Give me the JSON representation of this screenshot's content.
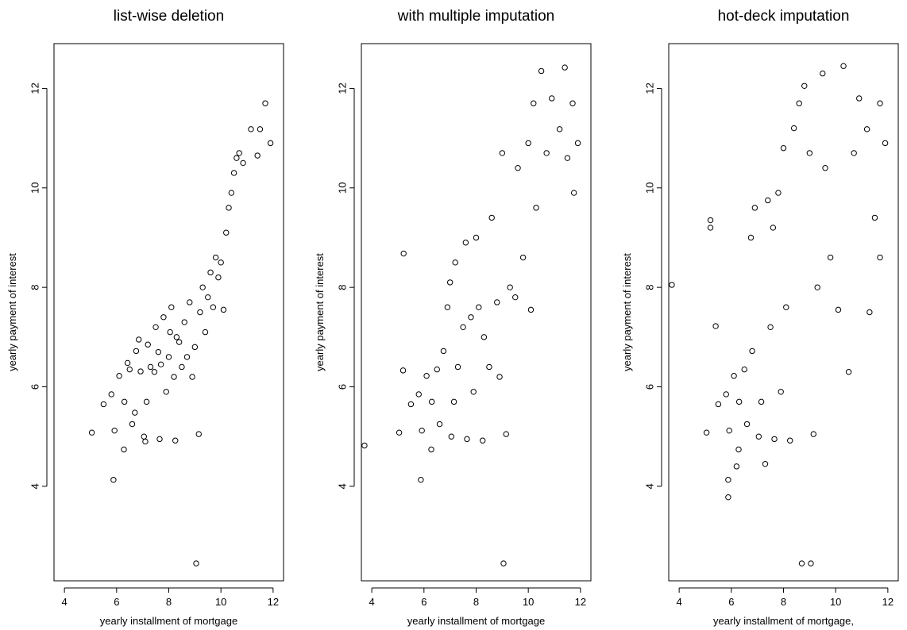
{
  "chart_data": [
    {
      "type": "scatter",
      "title": "list-wise deletion",
      "xlabel": "yearly installment of mortgage",
      "ylabel": "yearly payment of interest",
      "xlim": [
        3.6,
        12.4
      ],
      "ylim": [
        2.1,
        12.9
      ],
      "xticks": [
        4,
        6,
        8,
        10,
        12
      ],
      "yticks": [
        4,
        6,
        8,
        10,
        12
      ],
      "marker": "open-circle",
      "points": [
        [
          5.05,
          5.08
        ],
        [
          5.5,
          5.65
        ],
        [
          5.8,
          5.85
        ],
        [
          5.88,
          4.13
        ],
        [
          5.92,
          5.12
        ],
        [
          6.1,
          6.22
        ],
        [
          6.28,
          4.74
        ],
        [
          6.3,
          5.7
        ],
        [
          6.42,
          6.48
        ],
        [
          6.5,
          6.35
        ],
        [
          6.6,
          5.25
        ],
        [
          6.7,
          5.48
        ],
        [
          6.75,
          6.72
        ],
        [
          6.85,
          6.95
        ],
        [
          6.92,
          6.31
        ],
        [
          7.05,
          5.0
        ],
        [
          7.1,
          4.9
        ],
        [
          7.15,
          5.7
        ],
        [
          7.2,
          6.85
        ],
        [
          7.3,
          6.4
        ],
        [
          7.45,
          6.3
        ],
        [
          7.5,
          7.2
        ],
        [
          7.6,
          6.7
        ],
        [
          7.65,
          4.95
        ],
        [
          7.7,
          6.45
        ],
        [
          7.8,
          7.4
        ],
        [
          7.9,
          5.9
        ],
        [
          8.0,
          6.6
        ],
        [
          8.05,
          7.1
        ],
        [
          8.1,
          7.6
        ],
        [
          8.2,
          6.2
        ],
        [
          8.25,
          4.92
        ],
        [
          8.3,
          7.0
        ],
        [
          8.4,
          6.9
        ],
        [
          8.5,
          6.4
        ],
        [
          8.6,
          7.3
        ],
        [
          8.7,
          6.6
        ],
        [
          8.8,
          7.7
        ],
        [
          8.9,
          6.2
        ],
        [
          9.0,
          6.8
        ],
        [
          9.05,
          2.45
        ],
        [
          9.15,
          5.05
        ],
        [
          9.2,
          7.5
        ],
        [
          9.3,
          8.0
        ],
        [
          9.4,
          7.1
        ],
        [
          9.5,
          7.8
        ],
        [
          9.6,
          8.3
        ],
        [
          9.7,
          7.6
        ],
        [
          9.8,
          8.6
        ],
        [
          9.9,
          8.2
        ],
        [
          10.0,
          8.5
        ],
        [
          10.1,
          7.55
        ],
        [
          10.2,
          9.1
        ],
        [
          10.3,
          9.6
        ],
        [
          10.4,
          9.9
        ],
        [
          10.5,
          10.3
        ],
        [
          10.6,
          10.6
        ],
        [
          10.7,
          10.7
        ],
        [
          10.85,
          10.5
        ],
        [
          11.15,
          11.18
        ],
        [
          11.4,
          10.65
        ],
        [
          11.5,
          11.18
        ],
        [
          11.7,
          11.7
        ],
        [
          11.9,
          10.9
        ]
      ]
    },
    {
      "type": "scatter",
      "title": "with multiple imputation",
      "xlabel": "yearly installment of mortgage",
      "ylabel": "yearly payment of interest",
      "xlim": [
        3.6,
        12.4
      ],
      "ylim": [
        2.1,
        12.9
      ],
      "xticks": [
        4,
        6,
        8,
        10,
        12
      ],
      "yticks": [
        4,
        6,
        8,
        10,
        12
      ],
      "marker": "open-circle",
      "points": [
        [
          3.72,
          4.82
        ],
        [
          5.05,
          5.08
        ],
        [
          5.2,
          6.33
        ],
        [
          5.22,
          8.68
        ],
        [
          5.5,
          5.65
        ],
        [
          5.8,
          5.85
        ],
        [
          5.88,
          4.13
        ],
        [
          5.92,
          5.12
        ],
        [
          6.1,
          6.22
        ],
        [
          6.28,
          4.74
        ],
        [
          6.3,
          5.7
        ],
        [
          6.5,
          6.35
        ],
        [
          6.6,
          5.25
        ],
        [
          6.75,
          6.72
        ],
        [
          6.9,
          7.6
        ],
        [
          7.0,
          8.1
        ],
        [
          7.05,
          5.0
        ],
        [
          7.15,
          5.7
        ],
        [
          7.2,
          8.5
        ],
        [
          7.3,
          6.4
        ],
        [
          7.5,
          7.2
        ],
        [
          7.6,
          8.9
        ],
        [
          7.65,
          4.95
        ],
        [
          7.8,
          7.4
        ],
        [
          7.9,
          5.9
        ],
        [
          8.0,
          9.0
        ],
        [
          8.1,
          7.6
        ],
        [
          8.25,
          4.92
        ],
        [
          8.3,
          7.0
        ],
        [
          8.5,
          6.4
        ],
        [
          8.6,
          9.4
        ],
        [
          8.8,
          7.7
        ],
        [
          8.9,
          6.2
        ],
        [
          9.0,
          10.7
        ],
        [
          9.05,
          2.45
        ],
        [
          9.15,
          5.05
        ],
        [
          9.3,
          8.0
        ],
        [
          9.5,
          7.8
        ],
        [
          9.6,
          10.4
        ],
        [
          9.8,
          8.6
        ],
        [
          10.0,
          10.9
        ],
        [
          10.1,
          7.55
        ],
        [
          10.2,
          11.7
        ],
        [
          10.3,
          9.6
        ],
        [
          10.5,
          12.35
        ],
        [
          10.7,
          10.7
        ],
        [
          10.9,
          11.8
        ],
        [
          11.2,
          11.18
        ],
        [
          11.4,
          12.42
        ],
        [
          11.5,
          10.6
        ],
        [
          11.7,
          11.7
        ],
        [
          11.75,
          9.9
        ],
        [
          11.9,
          10.9
        ]
      ]
    },
    {
      "type": "scatter",
      "title": "hot-deck imputation",
      "xlabel": "yearly installment of mortgage,",
      "ylabel": "yearly payment of interest",
      "xlim": [
        3.6,
        12.4
      ],
      "ylim": [
        2.1,
        12.9
      ],
      "xticks": [
        4,
        6,
        8,
        10,
        12
      ],
      "yticks": [
        4,
        6,
        8,
        10,
        12
      ],
      "marker": "open-circle",
      "points": [
        [
          3.72,
          8.05
        ],
        [
          5.05,
          5.08
        ],
        [
          5.2,
          9.2
        ],
        [
          5.2,
          9.35
        ],
        [
          5.4,
          7.22
        ],
        [
          5.5,
          5.65
        ],
        [
          5.8,
          5.85
        ],
        [
          5.88,
          4.13
        ],
        [
          5.88,
          3.78
        ],
        [
          5.92,
          5.12
        ],
        [
          6.1,
          6.22
        ],
        [
          6.2,
          4.4
        ],
        [
          6.28,
          4.74
        ],
        [
          6.3,
          5.7
        ],
        [
          6.5,
          6.35
        ],
        [
          6.6,
          5.25
        ],
        [
          6.75,
          9.0
        ],
        [
          6.8,
          6.72
        ],
        [
          6.9,
          9.6
        ],
        [
          7.05,
          5.0
        ],
        [
          7.15,
          5.7
        ],
        [
          7.3,
          4.45
        ],
        [
          7.4,
          9.75
        ],
        [
          7.5,
          7.2
        ],
        [
          7.6,
          9.2
        ],
        [
          7.65,
          4.95
        ],
        [
          7.8,
          9.9
        ],
        [
          7.9,
          5.9
        ],
        [
          8.0,
          10.8
        ],
        [
          8.1,
          7.6
        ],
        [
          8.25,
          4.92
        ],
        [
          8.4,
          11.2
        ],
        [
          8.6,
          11.7
        ],
        [
          8.7,
          2.45
        ],
        [
          8.8,
          12.05
        ],
        [
          9.0,
          10.7
        ],
        [
          9.05,
          2.45
        ],
        [
          9.15,
          5.05
        ],
        [
          9.3,
          8.0
        ],
        [
          9.5,
          12.3
        ],
        [
          9.6,
          10.4
        ],
        [
          9.8,
          8.6
        ],
        [
          10.1,
          7.55
        ],
        [
          10.3,
          12.45
        ],
        [
          10.5,
          6.3
        ],
        [
          10.7,
          10.7
        ],
        [
          10.9,
          11.8
        ],
        [
          11.2,
          11.18
        ],
        [
          11.3,
          7.5
        ],
        [
          11.5,
          9.4
        ],
        [
          11.7,
          11.7
        ],
        [
          11.7,
          8.6
        ],
        [
          11.9,
          10.9
        ]
      ]
    }
  ]
}
